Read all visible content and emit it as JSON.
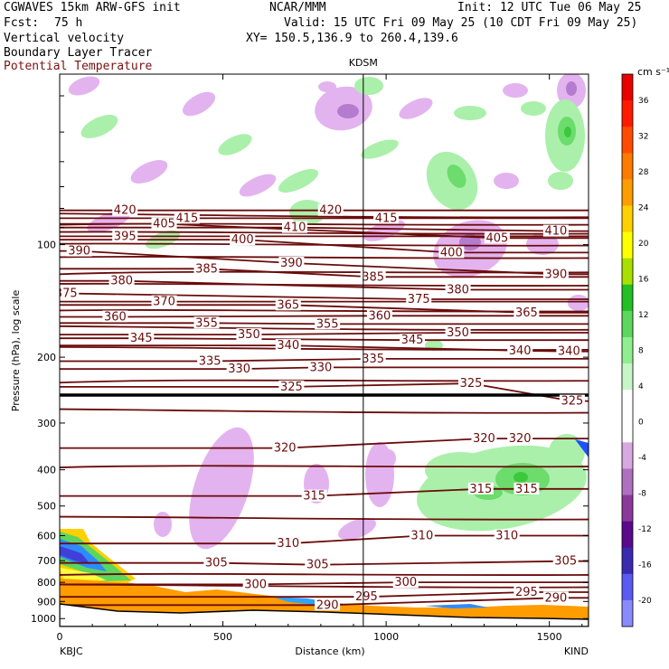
{
  "header": {
    "model": "CGWAVES 15km ARW-GFS init",
    "org": "NCAR/MMM",
    "init": "Init: 12 UTC Tue 06 May 25",
    "fcst_label": "Fcst:",
    "fcst_value": "75 h",
    "valid": "Valid: 15 UTC Fri 09 May 25 (10 CDT Fri 09 May 25)",
    "xy": "XY= 150.5,136.9 to 260.4,139.6",
    "field1": "Vertical velocity",
    "field2": "Boundary Layer Tracer",
    "field3": "Potential Temperature"
  },
  "chart_data": {
    "type": "cross-section",
    "station_marker": "KDSM",
    "xlabel": "Distance (km)",
    "ylabel": "Pressure (hPa), log scale",
    "x_ticks": [
      "0",
      "500",
      "1000",
      "1500"
    ],
    "x_end_labels": {
      "left": "KBJC",
      "right": "KIND"
    },
    "y_ticks": [
      "100",
      "200",
      "300",
      "400",
      "500",
      "600",
      "700",
      "800",
      "900",
      "1000"
    ],
    "xlim": [
      0,
      1620
    ],
    "ylim": [
      1050,
      35
    ],
    "y_scale": "log",
    "station_x_km": 930,
    "colorbar": {
      "unit": "cm s⁻¹",
      "levels": [
        -20,
        -16,
        -12,
        -8,
        -4,
        0,
        4,
        8,
        12,
        16,
        20,
        24,
        28,
        32,
        36
      ],
      "colors": [
        "#8a8aff",
        "#5a5af0",
        "#3a2ab0",
        "#5a0a8a",
        "#8a3a9a",
        "#b070c0",
        "#d8a8e0",
        "#ffffff",
        "#ffffff",
        "#c8f5c8",
        "#90ee90",
        "#5cd65c",
        "#22c022",
        "#a8e000",
        "#ffff00",
        "#ffd000",
        "#ff9c00",
        "#ff7a00",
        "#ff4c00",
        "#ff1a00",
        "#e80000"
      ]
    },
    "theta_labels": [
      {
        "v": "420",
        "x": 200,
        "p": 81
      },
      {
        "v": "420",
        "x": 830,
        "p": 81
      },
      {
        "v": "415",
        "x": 390,
        "p": 85
      },
      {
        "v": "415",
        "x": 1000,
        "p": 85
      },
      {
        "v": "410",
        "x": 720,
        "p": 90
      },
      {
        "v": "410",
        "x": 1520,
        "p": 92
      },
      {
        "v": "405",
        "x": 320,
        "p": 88
      },
      {
        "v": "405",
        "x": 1340,
        "p": 96
      },
      {
        "v": "400",
        "x": 560,
        "p": 97
      },
      {
        "v": "400",
        "x": 1200,
        "p": 105
      },
      {
        "v": "395",
        "x": 200,
        "p": 95
      },
      {
        "v": "390",
        "x": 60,
        "p": 104
      },
      {
        "v": "390",
        "x": 710,
        "p": 112
      },
      {
        "v": "390",
        "x": 1520,
        "p": 120
      },
      {
        "v": "385",
        "x": 450,
        "p": 116
      },
      {
        "v": "385",
        "x": 960,
        "p": 122
      },
      {
        "v": "380",
        "x": 190,
        "p": 125
      },
      {
        "v": "380",
        "x": 1220,
        "p": 132
      },
      {
        "v": "375",
        "x": 20,
        "p": 135
      },
      {
        "v": "375",
        "x": 1100,
        "p": 140
      },
      {
        "v": "370",
        "x": 320,
        "p": 142
      },
      {
        "v": "365",
        "x": 700,
        "p": 145
      },
      {
        "v": "365",
        "x": 1430,
        "p": 152
      },
      {
        "v": "360",
        "x": 170,
        "p": 156
      },
      {
        "v": "360",
        "x": 980,
        "p": 155
      },
      {
        "v": "355",
        "x": 450,
        "p": 162
      },
      {
        "v": "355",
        "x": 820,
        "p": 163
      },
      {
        "v": "350",
        "x": 580,
        "p": 174
      },
      {
        "v": "350",
        "x": 1220,
        "p": 172
      },
      {
        "v": "345",
        "x": 250,
        "p": 178
      },
      {
        "v": "345",
        "x": 1080,
        "p": 180
      },
      {
        "v": "340",
        "x": 700,
        "p": 186
      },
      {
        "v": "340",
        "x": 1410,
        "p": 192
      },
      {
        "v": "340",
        "x": 1560,
        "p": 193
      },
      {
        "v": "335",
        "x": 460,
        "p": 205
      },
      {
        "v": "335",
        "x": 960,
        "p": 202
      },
      {
        "v": "330",
        "x": 550,
        "p": 215
      },
      {
        "v": "330",
        "x": 800,
        "p": 213
      },
      {
        "v": "325",
        "x": 710,
        "p": 240
      },
      {
        "v": "325",
        "x": 1260,
        "p": 235
      },
      {
        "v": "325",
        "x": 1570,
        "p": 262
      },
      {
        "v": "320",
        "x": 690,
        "p": 350
      },
      {
        "v": "320",
        "x": 1300,
        "p": 330
      },
      {
        "v": "320",
        "x": 1410,
        "p": 330
      },
      {
        "v": "315",
        "x": 780,
        "p": 470
      },
      {
        "v": "315",
        "x": 1290,
        "p": 450
      },
      {
        "v": "315",
        "x": 1430,
        "p": 450
      },
      {
        "v": "310",
        "x": 700,
        "p": 630
      },
      {
        "v": "310",
        "x": 1110,
        "p": 600
      },
      {
        "v": "310",
        "x": 1370,
        "p": 600
      },
      {
        "v": "305",
        "x": 480,
        "p": 710
      },
      {
        "v": "305",
        "x": 790,
        "p": 718
      },
      {
        "v": "305",
        "x": 1550,
        "p": 702
      },
      {
        "v": "300",
        "x": 600,
        "p": 810
      },
      {
        "v": "300",
        "x": 1060,
        "p": 800
      },
      {
        "v": "295",
        "x": 940,
        "p": 875
      },
      {
        "v": "295",
        "x": 1430,
        "p": 850
      },
      {
        "v": "290",
        "x": 820,
        "p": 920
      },
      {
        "v": "290",
        "x": 1520,
        "p": 880
      }
    ]
  }
}
